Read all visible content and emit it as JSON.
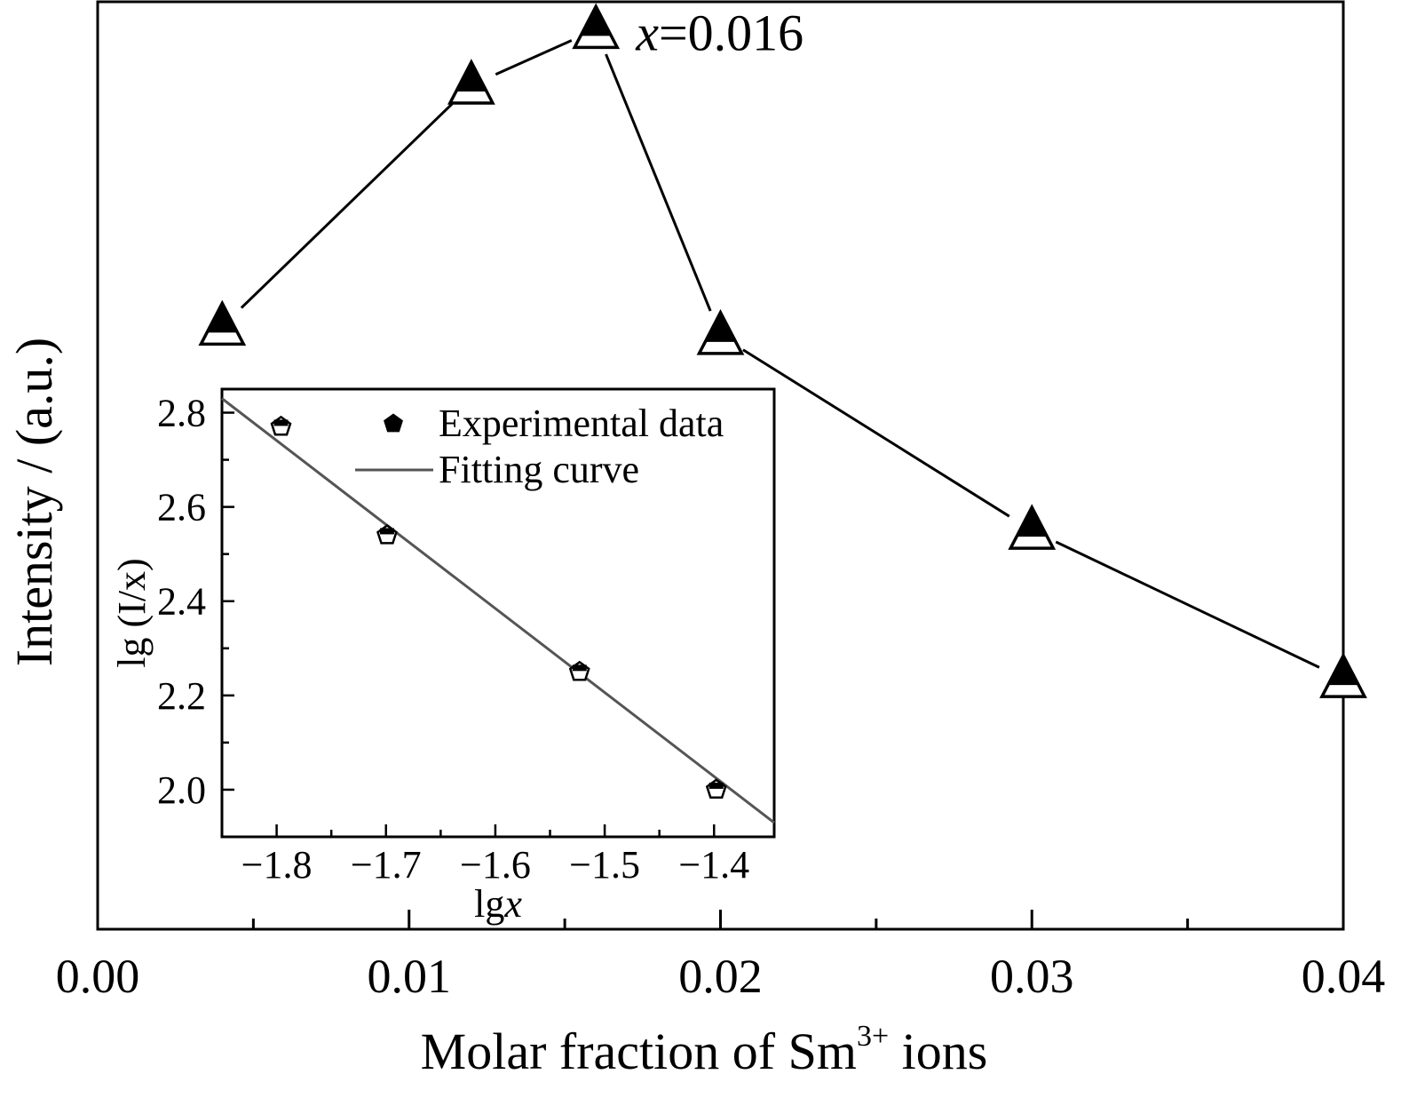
{
  "chart_data": [
    {
      "type": "line",
      "xlabel": {
        "prefix": "Molar fraction of Sm",
        "sup": "3+",
        "suffix": " ions"
      },
      "ylabel": "Intensity / (a.u.)",
      "xlim": [
        0.0,
        0.04
      ],
      "ylim": [
        0,
        100
      ],
      "x_ticks": [
        0.0,
        0.01,
        0.02,
        0.03,
        0.04
      ],
      "x_tick_labels": [
        "0.00",
        "0.01",
        "0.02",
        "0.03",
        "0.04"
      ],
      "x_minor_ticks": [
        0.005,
        0.015,
        0.025,
        0.035
      ],
      "y_tick_labels": [],
      "grid": false,
      "series": [
        {
          "x": [
            0.004,
            0.012,
            0.016,
            0.02,
            0.03,
            0.04
          ],
          "y": [
            65,
            91,
            97,
            64,
            43,
            27
          ]
        }
      ],
      "annotations": [
        {
          "italic": "x",
          "rest": "=0.016",
          "x": 0.016,
          "y": 97
        }
      ]
    },
    {
      "type": "scatter",
      "inset": true,
      "xlabel": {
        "prefix": "lg",
        "italic": "x"
      },
      "ylabel": "lg (I/x)",
      "xlim": [
        -1.85,
        -1.345
      ],
      "ylim": [
        1.9,
        2.85
      ],
      "x_ticks": [
        -1.8,
        -1.7,
        -1.6,
        -1.5,
        -1.4
      ],
      "x_tick_labels": [
        "−1.8",
        "−1.7",
        "−1.6",
        "−1.5",
        "−1.4"
      ],
      "x_minor_ticks": [
        -1.75,
        -1.65,
        -1.55,
        -1.45
      ],
      "y_ticks": [
        2.0,
        2.2,
        2.4,
        2.6,
        2.8
      ],
      "y_tick_labels": [
        "2.0",
        "2.2",
        "2.4",
        "2.6",
        "2.8"
      ],
      "y_minor_ticks": [
        1.9,
        2.1,
        2.3,
        2.5,
        2.7
      ],
      "legend_position": "top-right",
      "series": [
        {
          "name": "Experimental data",
          "marker": "pentagon",
          "x": [
            -1.796,
            -1.699,
            -1.523,
            -1.398
          ],
          "y": [
            2.77,
            2.54,
            2.25,
            2.0
          ]
        },
        {
          "name": "Fitting curve",
          "line": true,
          "x": [
            -1.85,
            -1.345
          ],
          "y": [
            2.83,
            1.93
          ],
          "color": "#555555"
        }
      ]
    }
  ]
}
